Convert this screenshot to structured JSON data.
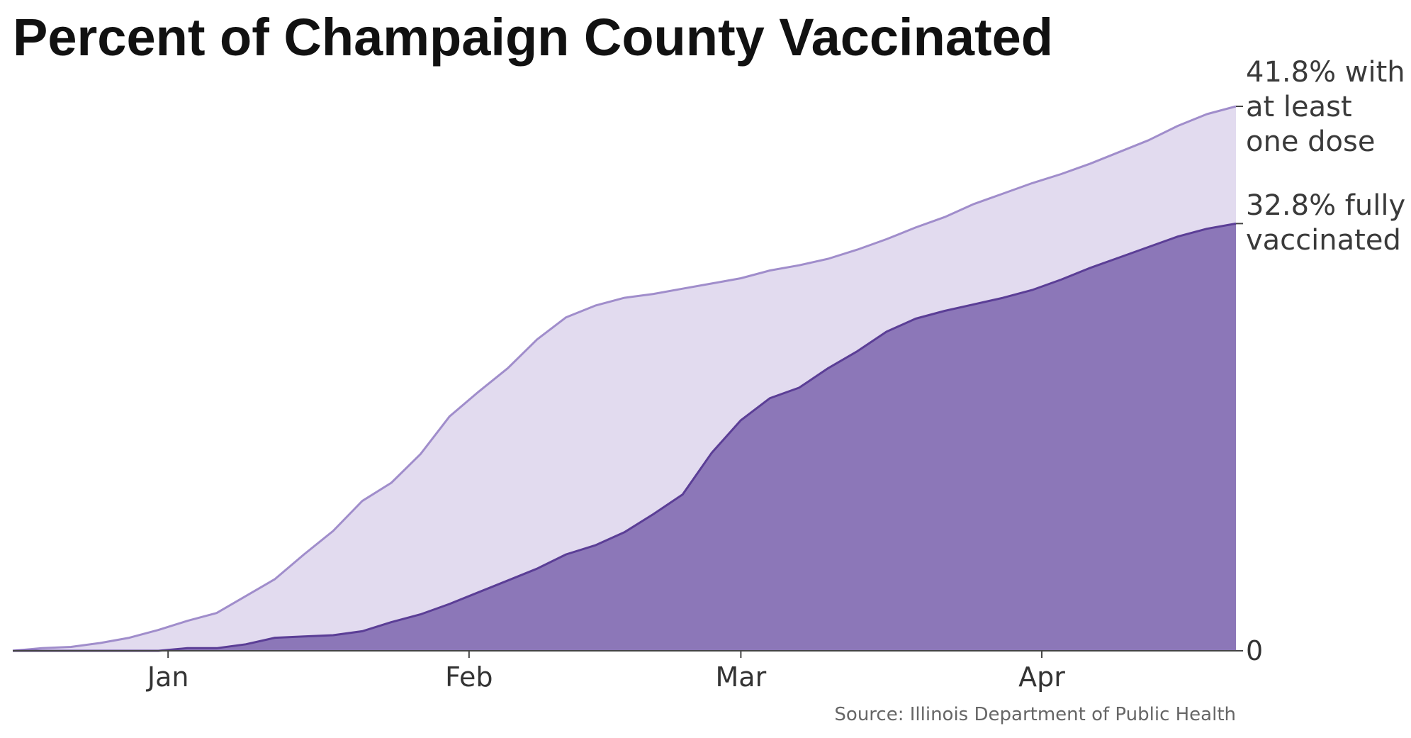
{
  "chart_data": {
    "type": "area",
    "title": "Percent of Champaign County Vaccinated",
    "source": "Source: Illinois Department of Public Health",
    "x_ticks": [
      "Jan",
      "Feb",
      "Mar",
      "Apr"
    ],
    "y_ticks": [
      "0"
    ],
    "x_range": [
      "2020-12-16",
      "2021-04-21"
    ],
    "ylim": [
      0,
      41.8
    ],
    "x": [
      "2020-12-16",
      "2020-12-19",
      "2020-12-22",
      "2020-12-25",
      "2020-12-28",
      "2020-12-31",
      "2021-01-03",
      "2021-01-06",
      "2021-01-09",
      "2021-01-12",
      "2021-01-15",
      "2021-01-18",
      "2021-01-21",
      "2021-01-24",
      "2021-01-27",
      "2021-01-30",
      "2021-02-02",
      "2021-02-05",
      "2021-02-08",
      "2021-02-11",
      "2021-02-14",
      "2021-02-17",
      "2021-02-20",
      "2021-02-23",
      "2021-02-26",
      "2021-03-01",
      "2021-03-04",
      "2021-03-07",
      "2021-03-10",
      "2021-03-13",
      "2021-03-16",
      "2021-03-19",
      "2021-03-22",
      "2021-03-25",
      "2021-03-28",
      "2021-03-31",
      "2021-04-03",
      "2021-04-06",
      "2021-04-09",
      "2021-04-12",
      "2021-04-15",
      "2021-04-18",
      "2021-04-21"
    ],
    "series": [
      {
        "name": "41.8% with at least one dose",
        "color": "#a08dcb",
        "fill": "#e2dbef",
        "values": [
          0.0,
          0.2,
          0.3,
          0.6,
          1.0,
          1.6,
          2.3,
          2.9,
          4.2,
          5.5,
          7.4,
          9.2,
          11.5,
          12.9,
          15.1,
          18.0,
          19.9,
          21.7,
          23.9,
          25.6,
          26.5,
          27.1,
          27.4,
          27.8,
          28.2,
          28.6,
          29.2,
          29.6,
          30.1,
          30.8,
          31.6,
          32.5,
          33.3,
          34.3,
          35.1,
          35.9,
          36.6,
          37.4,
          38.3,
          39.2,
          40.3,
          41.2,
          41.8
        ]
      },
      {
        "name": "32.8% fully vaccinated",
        "color": "#5b3e96",
        "fill": "#8c77b8",
        "values": [
          0.0,
          0.0,
          0.0,
          0.0,
          0.0,
          0.0,
          0.2,
          0.2,
          0.5,
          1.0,
          1.1,
          1.2,
          1.5,
          2.2,
          2.8,
          3.6,
          4.5,
          5.4,
          6.3,
          7.4,
          8.1,
          9.1,
          10.5,
          12.0,
          15.2,
          17.7,
          19.4,
          20.2,
          21.7,
          23.0,
          24.5,
          25.5,
          26.1,
          26.6,
          27.1,
          27.7,
          28.5,
          29.4,
          30.2,
          31.0,
          31.8,
          32.4,
          32.8
        ]
      }
    ],
    "end_labels": {
      "dose": [
        "41.8% with",
        "at least",
        "one dose"
      ],
      "full": [
        "32.8% fully",
        "vaccinated"
      ]
    }
  }
}
